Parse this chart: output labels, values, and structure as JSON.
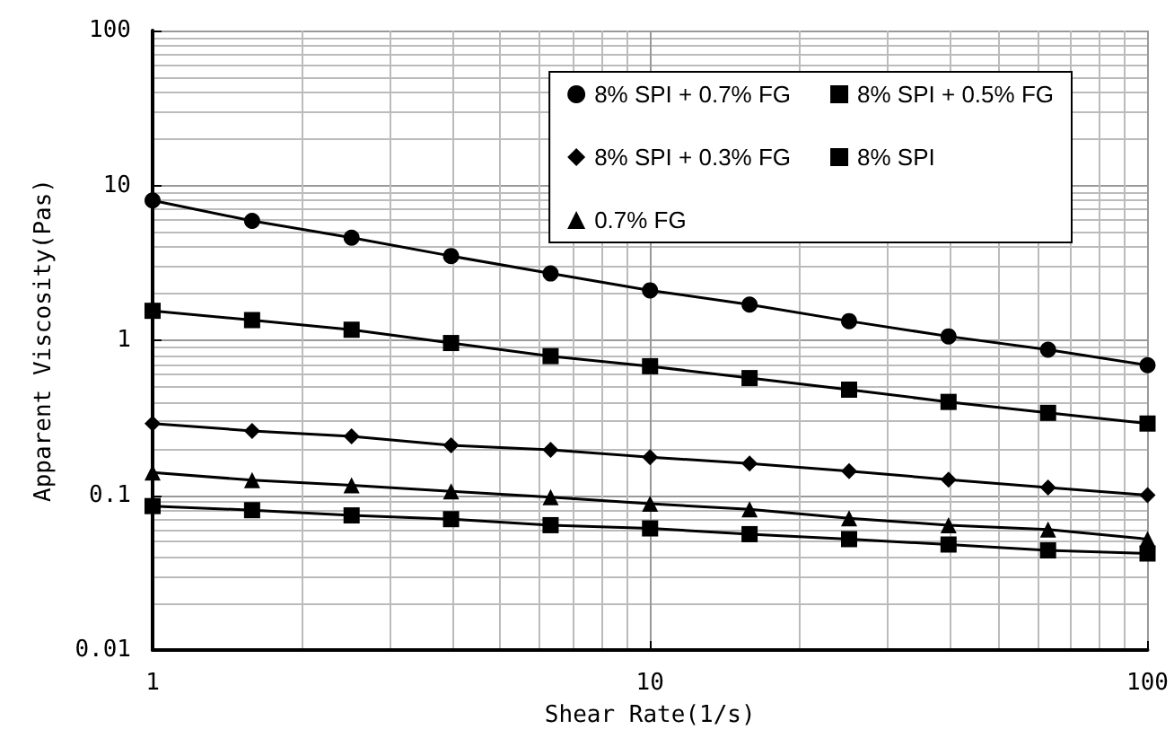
{
  "chart_data": {
    "type": "line",
    "xlabel": "Shear Rate(1/s)",
    "ylabel": "Apparent Viscosity(Pas)",
    "log": "xy",
    "xlim": [
      1,
      100
    ],
    "xticks": [
      1,
      10,
      100
    ],
    "ylim": [
      0.01,
      100
    ],
    "yticks": [
      0.01,
      0.1,
      1,
      10,
      100
    ],
    "grid": true,
    "legend": "top right",
    "line_style": "solid",
    "x": [
      1,
      1.585,
      2.512,
      3.981,
      6.31,
      10,
      15.85,
      25.12,
      39.81,
      63.1,
      100
    ],
    "series": [
      {
        "name": "8% SPI + 0.7% FG",
        "color": "#000000",
        "marker": "circle",
        "values": [
          8.0,
          5.9,
          4.6,
          3.5,
          2.7,
          2.1,
          1.7,
          1.33,
          1.06,
          0.87,
          0.69
        ]
      },
      {
        "name": "8% SPI + 0.5% FG",
        "color": "#000000",
        "marker": "square",
        "values": [
          1.55,
          1.35,
          1.17,
          0.96,
          0.79,
          0.68,
          0.57,
          0.48,
          0.4,
          0.34,
          0.29
        ]
      },
      {
        "name": "8% SPI + 0.3% FG",
        "color": "#000000",
        "marker": "diamond",
        "values": [
          0.29,
          0.26,
          0.24,
          0.21,
          0.196,
          0.176,
          0.16,
          0.143,
          0.126,
          0.112,
          0.1
        ]
      },
      {
        "name": "8% SPI",
        "color": "#000000",
        "marker": "square",
        "values": [
          0.085,
          0.08,
          0.074,
          0.07,
          0.064,
          0.061,
          0.056,
          0.052,
          0.048,
          0.044,
          0.042
        ]
      },
      {
        "name": "0.7% FG",
        "color": "#000000",
        "marker": "triangle",
        "values": [
          0.14,
          0.125,
          0.116,
          0.106,
          0.097,
          0.088,
          0.081,
          0.071,
          0.064,
          0.06,
          0.052
        ]
      }
    ]
  }
}
